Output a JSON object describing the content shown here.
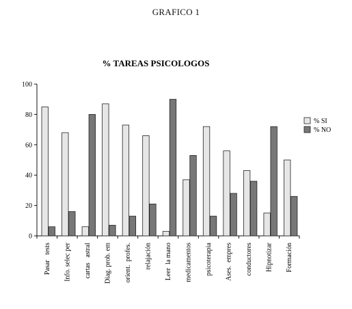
{
  "page": {
    "heading": "GRAFICO 1"
  },
  "chart_data": {
    "type": "bar",
    "title": "% TAREAS PSICOLOGOS",
    "xlabel": "",
    "ylabel": "",
    "ylim": [
      0,
      100
    ],
    "yticks": [
      "0",
      "20",
      "40",
      "60",
      "80",
      "100"
    ],
    "categories": [
      "Pasar   tests",
      "Info. selec per",
      "cartas   astral",
      "Diag. prob. em",
      "orient.  profes.",
      "relajación",
      "Leer  la mano",
      "medicamentos",
      "psicoterapia",
      "Ases.  empres",
      "conductores",
      "Hipnotizar",
      "Formación"
    ],
    "series": [
      {
        "name": "% SI",
        "color": "#e6e6e6",
        "values": [
          85,
          68,
          6,
          87,
          73,
          66,
          3,
          37,
          72,
          56,
          43,
          15,
          50
        ]
      },
      {
        "name": "% NO",
        "color": "#777777",
        "values": [
          6,
          16,
          80,
          7,
          13,
          21,
          90,
          53,
          13,
          28,
          36,
          72,
          26
        ]
      }
    ],
    "legend_position": "right",
    "grid": false
  }
}
